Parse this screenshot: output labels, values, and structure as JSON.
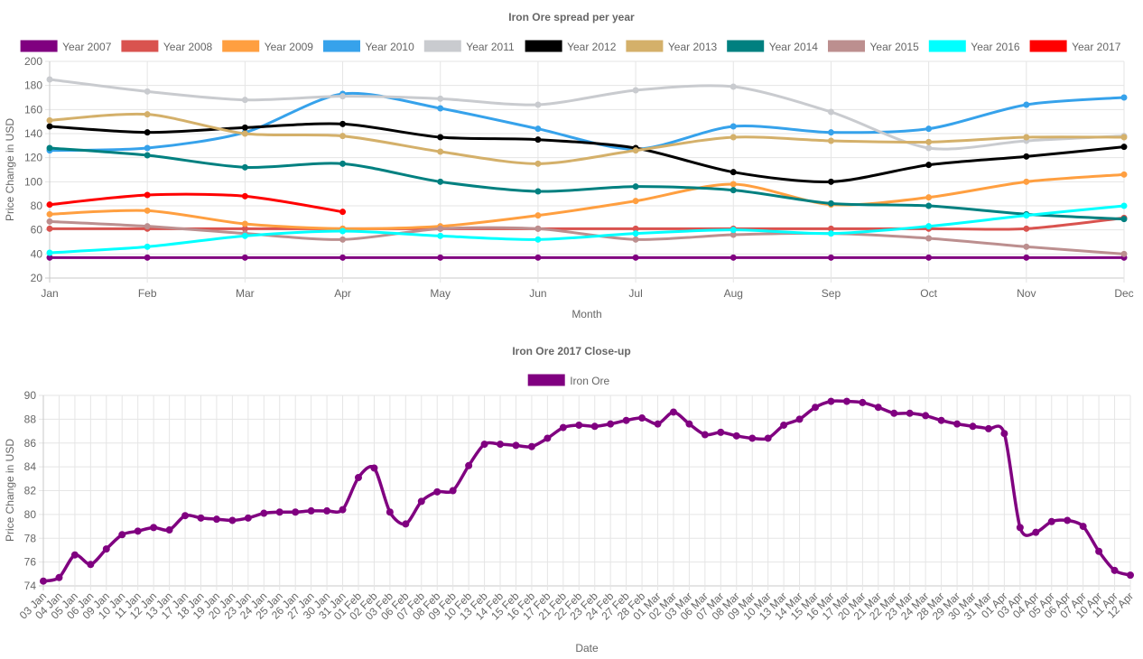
{
  "chart_data": [
    {
      "type": "line",
      "title": "Iron Ore spread per year",
      "xlabel": "Month",
      "ylabel": "Price Change in USD",
      "ylim": [
        20,
        200
      ],
      "yticks": [
        20,
        40,
        60,
        80,
        100,
        120,
        140,
        160,
        180,
        200
      ],
      "grid": true,
      "legend_position": "top",
      "categories": [
        "Jan",
        "Feb",
        "Mar",
        "Apr",
        "May",
        "Jun",
        "Jul",
        "Aug",
        "Sep",
        "Oct",
        "Nov",
        "Dec"
      ],
      "series": [
        {
          "name": "Year 2007",
          "color": "#800080",
          "values": [
            37,
            37,
            37,
            37,
            37,
            37,
            37,
            37,
            37,
            37,
            37,
            37
          ]
        },
        {
          "name": "Year 2008",
          "color": "#d9534f",
          "values": [
            61,
            61,
            61,
            61,
            61,
            61,
            61,
            61,
            61,
            61,
            61,
            70
          ]
        },
        {
          "name": "Year 2009",
          "color": "#ff9f40",
          "values": [
            73,
            76,
            65,
            61,
            63,
            72,
            84,
            98,
            81,
            87,
            100,
            106
          ]
        },
        {
          "name": "Year 2010",
          "color": "#36a2eb",
          "values": [
            126,
            128,
            141,
            173,
            161,
            144,
            127,
            146,
            141,
            144,
            164,
            170
          ]
        },
        {
          "name": "Year 2011",
          "color": "#c9cbcf",
          "values": [
            185,
            175,
            168,
            171,
            169,
            164,
            176,
            179,
            158,
            128,
            134,
            138
          ]
        },
        {
          "name": "Year 2012",
          "color": "#000000",
          "values": [
            146,
            141,
            145,
            148,
            137,
            135,
            128,
            108,
            100,
            114,
            121,
            129
          ]
        },
        {
          "name": "Year 2013",
          "color": "#d4b06a",
          "values": [
            151,
            156,
            140,
            138,
            125,
            115,
            126,
            137,
            134,
            133,
            137,
            137
          ]
        },
        {
          "name": "Year 2014",
          "color": "#008080",
          "values": [
            128,
            122,
            112,
            115,
            100,
            92,
            96,
            93,
            82,
            80,
            73,
            69
          ]
        },
        {
          "name": "Year 2015",
          "color": "#bc8f8f",
          "values": [
            67,
            63,
            57,
            52,
            61,
            61,
            52,
            56,
            57,
            53,
            46,
            40
          ]
        },
        {
          "name": "Year 2016",
          "color": "#00ffff",
          "values": [
            41,
            46,
            55,
            59,
            55,
            52,
            57,
            60,
            57,
            63,
            72,
            80
          ]
        },
        {
          "name": "Year 2017",
          "color": "#ff0000",
          "values": [
            81,
            89,
            88,
            75,
            null,
            null,
            null,
            null,
            null,
            null,
            null,
            null
          ]
        }
      ]
    },
    {
      "type": "line",
      "title": "Iron Ore 2017 Close-up",
      "xlabel": "Date",
      "ylabel": "Price Change in USD",
      "ylim": [
        74,
        90
      ],
      "yticks": [
        74,
        76,
        78,
        80,
        82,
        84,
        86,
        88,
        90
      ],
      "grid": true,
      "legend_position": "top",
      "categories": [
        "03 Jan",
        "04 Jan",
        "05 Jan",
        "06 Jan",
        "09 Jan",
        "10 Jan",
        "11 Jan",
        "12 Jan",
        "13 Jan",
        "17 Jan",
        "18 Jan",
        "19 Jan",
        "20 Jan",
        "23 Jan",
        "24 Jan",
        "25 Jan",
        "26 Jan",
        "27 Jan",
        "30 Jan",
        "31 Jan",
        "01 Feb",
        "02 Feb",
        "03 Feb",
        "06 Feb",
        "07 Feb",
        "08 Feb",
        "09 Feb",
        "10 Feb",
        "13 Feb",
        "14 Feb",
        "15 Feb",
        "16 Feb",
        "17 Feb",
        "21 Feb",
        "22 Feb",
        "23 Feb",
        "24 Feb",
        "27 Feb",
        "28 Feb",
        "01 Mar",
        "02 Mar",
        "03 Mar",
        "06 Mar",
        "07 Mar",
        "08 Mar",
        "09 Mar",
        "10 Mar",
        "13 Mar",
        "14 Mar",
        "15 Mar",
        "16 Mar",
        "17 Mar",
        "20 Mar",
        "21 Mar",
        "22 Mar",
        "23 Mar",
        "24 Mar",
        "28 Mar",
        "29 Mar",
        "30 Mar",
        "31 Mar",
        "01 Apr",
        "03 Apr",
        "04 Apr",
        "05 Apr",
        "06 Apr",
        "07 Apr",
        "10 Apr",
        "11 Apr",
        "12 Apr"
      ],
      "series": [
        {
          "name": "Iron Ore",
          "color": "#800080",
          "values": [
            74.4,
            74.7,
            76.6,
            75.8,
            77.1,
            78.3,
            78.6,
            78.9,
            78.7,
            79.9,
            79.7,
            79.6,
            79.5,
            79.7,
            80.1,
            80.2,
            80.2,
            80.3,
            80.3,
            80.4,
            83.1,
            83.9,
            80.2,
            79.2,
            81.1,
            81.9,
            82.0,
            84.1,
            85.9,
            85.9,
            85.8,
            85.7,
            86.4,
            87.3,
            87.5,
            87.4,
            87.6,
            87.9,
            88.1,
            87.6,
            88.6,
            87.6,
            86.7,
            86.9,
            86.6,
            86.4,
            86.4,
            87.5,
            88.0,
            89.0,
            89.5,
            89.5,
            89.4,
            89.0,
            88.5,
            88.5,
            88.3,
            87.9,
            87.6,
            87.4,
            87.2,
            86.8,
            78.9,
            78.5,
            79.4,
            79.5,
            79.0,
            76.9,
            75.3,
            74.9
          ]
        }
      ]
    }
  ]
}
